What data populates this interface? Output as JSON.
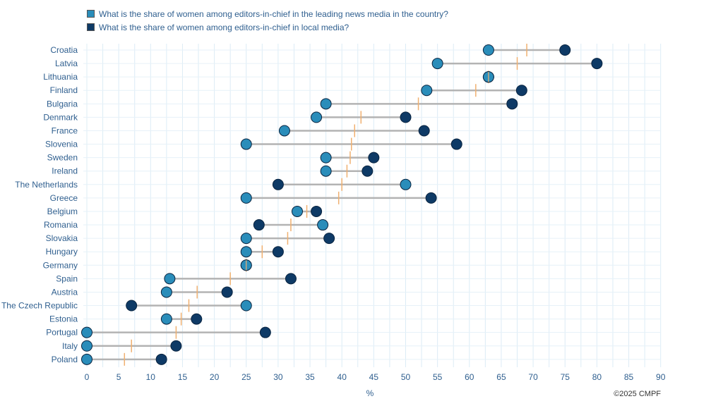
{
  "legend": [
    {
      "label": "What is the share of women among editors-in-chief in the leading news media in the country?",
      "color": "#2a8dba"
    },
    {
      "label": "What is the share of women among editors-in-chief in local media?",
      "color": "#0e3a66"
    }
  ],
  "credit": "©2025 CMPF",
  "chart_data": {
    "type": "dumbbell",
    "xlabel": "%",
    "xlim": [
      0,
      90
    ],
    "xticks": [
      0,
      5,
      10,
      15,
      20,
      25,
      30,
      35,
      40,
      45,
      50,
      55,
      60,
      65,
      70,
      75,
      80,
      85,
      90
    ],
    "grid": true,
    "legend_position": "top-left",
    "colors": {
      "leading": "#2a8dba",
      "local": "#0e3a66",
      "average_marker": "#f0b070",
      "connector": "#b3b3b3"
    },
    "series": [
      {
        "name": "What is the share of women among editors-in-chief in the leading news media in the country?",
        "key": "leading"
      },
      {
        "name": "What is the share of women among editors-in-chief in local media?",
        "key": "local"
      }
    ],
    "categories": [
      "Croatia",
      "Latvia",
      "Lithuania",
      "Finland",
      "Bulgaria",
      "Denmark",
      "France",
      "Slovenia",
      "Sweden",
      "Ireland",
      "The Netherlands",
      "Greece",
      "Belgium",
      "Romania",
      "Slovakia",
      "Hungary",
      "Germany",
      "Spain",
      "Austria",
      "The Czech Republic",
      "Estonia",
      "Portugal",
      "Italy",
      "Poland"
    ],
    "leading": [
      63,
      55,
      63,
      53.3,
      37.5,
      36,
      31,
      25,
      37.5,
      37.5,
      50,
      25,
      33,
      37,
      25,
      25,
      25,
      13,
      12.5,
      25,
      12.5,
      0,
      0,
      0
    ],
    "local": [
      75,
      80,
      63,
      68.2,
      66.7,
      50,
      52.9,
      58,
      45,
      44,
      30,
      54,
      36,
      27,
      38,
      30,
      25,
      32,
      22,
      7,
      17.2,
      28,
      14,
      11.7
    ],
    "average": [
      69,
      67.5,
      63,
      61,
      52,
      43,
      42,
      41.5,
      41.3,
      40.8,
      40,
      39.5,
      34.5,
      32,
      31.5,
      27.5,
      25,
      22.5,
      17.3,
      16,
      14.8,
      14,
      7,
      5.9
    ]
  }
}
